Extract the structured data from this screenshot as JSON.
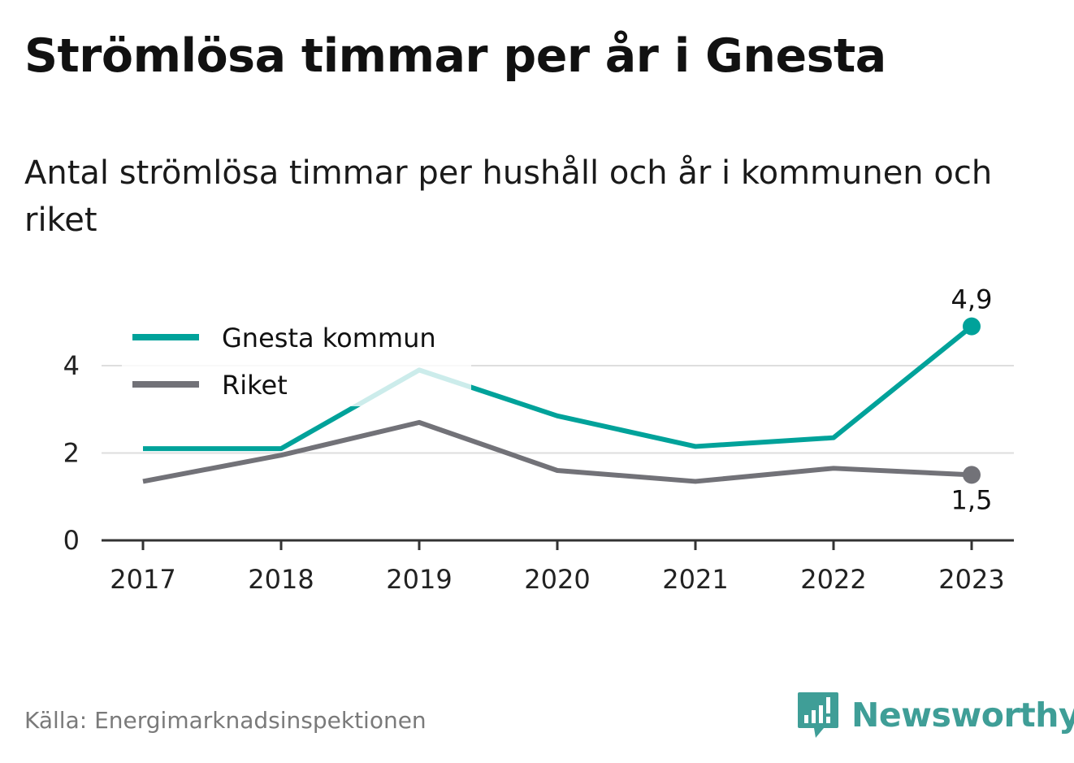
{
  "header": {
    "title": "Strömlösa timmar per år i Gnesta",
    "subtitle": "Antal strömlösa timmar per hushåll och år i kommunen och riket"
  },
  "footer": {
    "source": "Källa: Energimarknadsinspektionen",
    "brand": "Newsworthy",
    "brand_icon": "bar-chart-speech-bubble-icon",
    "brand_color": "#3f9e97"
  },
  "chart_data": {
    "type": "line",
    "categories": [
      "2017",
      "2018",
      "2019",
      "2020",
      "2021",
      "2022",
      "2023"
    ],
    "series": [
      {
        "name": "Gnesta kommun",
        "color": "#00a29a",
        "values": [
          2.1,
          2.1,
          3.9,
          2.85,
          2.15,
          2.35,
          4.9
        ],
        "end_label": "4,9"
      },
      {
        "name": "Riket",
        "color": "#727278",
        "values": [
          1.35,
          1.95,
          2.7,
          1.6,
          1.35,
          1.65,
          1.5
        ],
        "end_label": "1,5"
      }
    ],
    "yticks": [
      0,
      2,
      4
    ],
    "ytick_labels": [
      "0",
      "2",
      "4"
    ],
    "ylim": [
      0,
      5.2
    ],
    "grid": true,
    "legend": "top-left",
    "xlabel": "",
    "ylabel": ""
  }
}
